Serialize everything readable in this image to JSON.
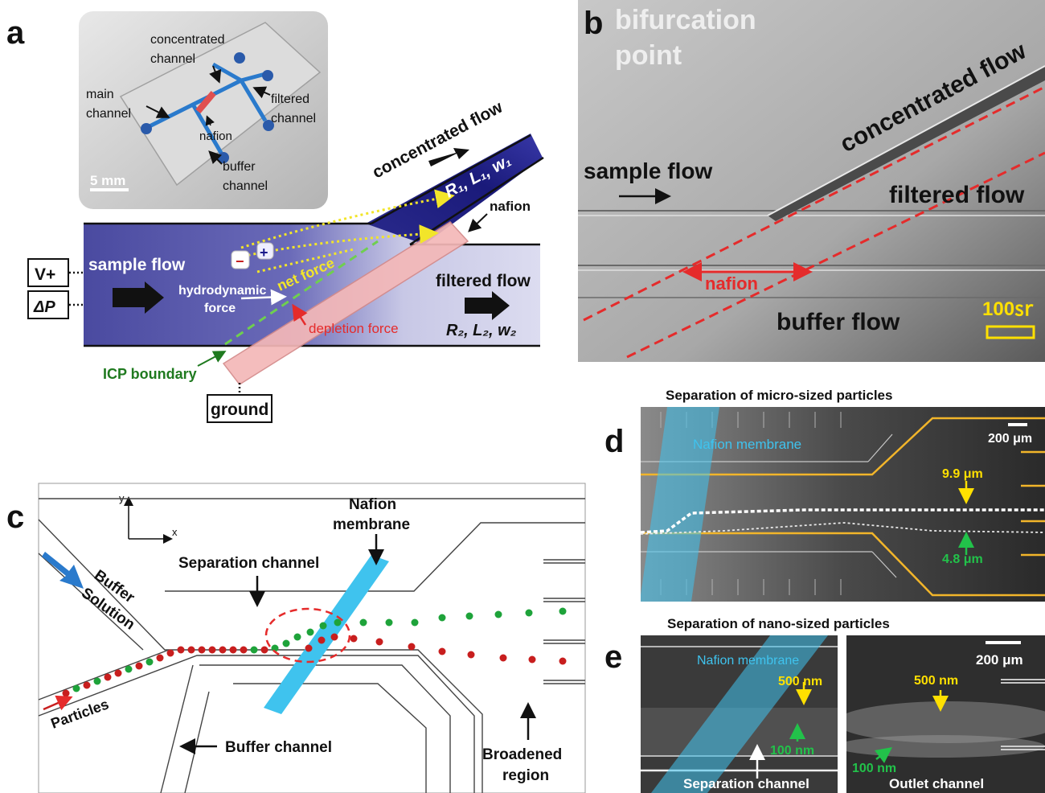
{
  "panel_letters": {
    "a": "a",
    "b": "b",
    "c": "c",
    "d": "d",
    "e": "e"
  },
  "panel_a": {
    "photo": {
      "concentrated_channel": [
        "concentrated",
        "channel"
      ],
      "main_channel": [
        "main",
        "channel"
      ],
      "filtered_channel": [
        "filtered",
        "channel"
      ],
      "nafion": "nafion",
      "buffer_channel": [
        "buffer",
        "channel"
      ],
      "scale": "5 mm"
    },
    "schematic": {
      "concentrated_flow": "concentrated flow",
      "r1l1w1": "R₁, L₁, w₁",
      "nafion": "nafion",
      "v_plus": "V+",
      "delta_p": "ΔP",
      "sample_flow": "sample flow",
      "net_force": "net force",
      "hydrodynamic_force": [
        "hydrodynamic",
        "force"
      ],
      "depletion_force": "depletion force",
      "filtered_flow": "filtered flow",
      "r2l2w2": "R₂, L₂, w₂",
      "icp_boundary": "ICP boundary",
      "ground": "ground",
      "minus": "−",
      "plus": "+"
    }
  },
  "panel_b": {
    "bifurcation": [
      "bifurcation",
      "point"
    ],
    "concentrated_flow": "concentrated flow",
    "sample_flow": "sample flow",
    "filtered_flow": "filtered flow",
    "nafion": "nafion",
    "buffer_flow": "buffer flow",
    "scale": "100㏛"
  },
  "panel_c": {
    "y_axis": "y",
    "x_axis": "x",
    "nafion_membrane": [
      "Nafion",
      "membrane"
    ],
    "separation_channel": "Separation channel",
    "buffer_solution": [
      "Buffer",
      "Solution"
    ],
    "particles": "Particles",
    "buffer_channel": "Buffer channel",
    "broadened_region": [
      "Broadened",
      "region"
    ]
  },
  "panel_d": {
    "title": "Separation of micro-sized particles",
    "nafion_membrane": "Nafion membrane",
    "scale": "200 μm",
    "large": "9.9 μm",
    "small": "4.8 μm"
  },
  "panel_e": {
    "title": "Separation of nano-sized particles",
    "nafion_membrane": "Nafion membrane",
    "nm500_left": "500 nm",
    "nm100_left": "100 nm",
    "separation_channel": "Separation channel",
    "scale": "200 μm",
    "nm500_right": "500 nm",
    "nm100_right": "100 nm",
    "outlet_channel": "Outlet channel"
  },
  "colors": {
    "channel_dark": "#1a1a7a",
    "channel_light": "#d4d4ec",
    "nafion_pink": "#f4b8b8",
    "red_label": "#e52b2b",
    "green_label": "#1f7a1f",
    "yellow_label": "#ffe000",
    "membrane_blue": "#3fc3ee",
    "green_particle": "#1ea33a",
    "red_particle": "#c81e1e"
  }
}
